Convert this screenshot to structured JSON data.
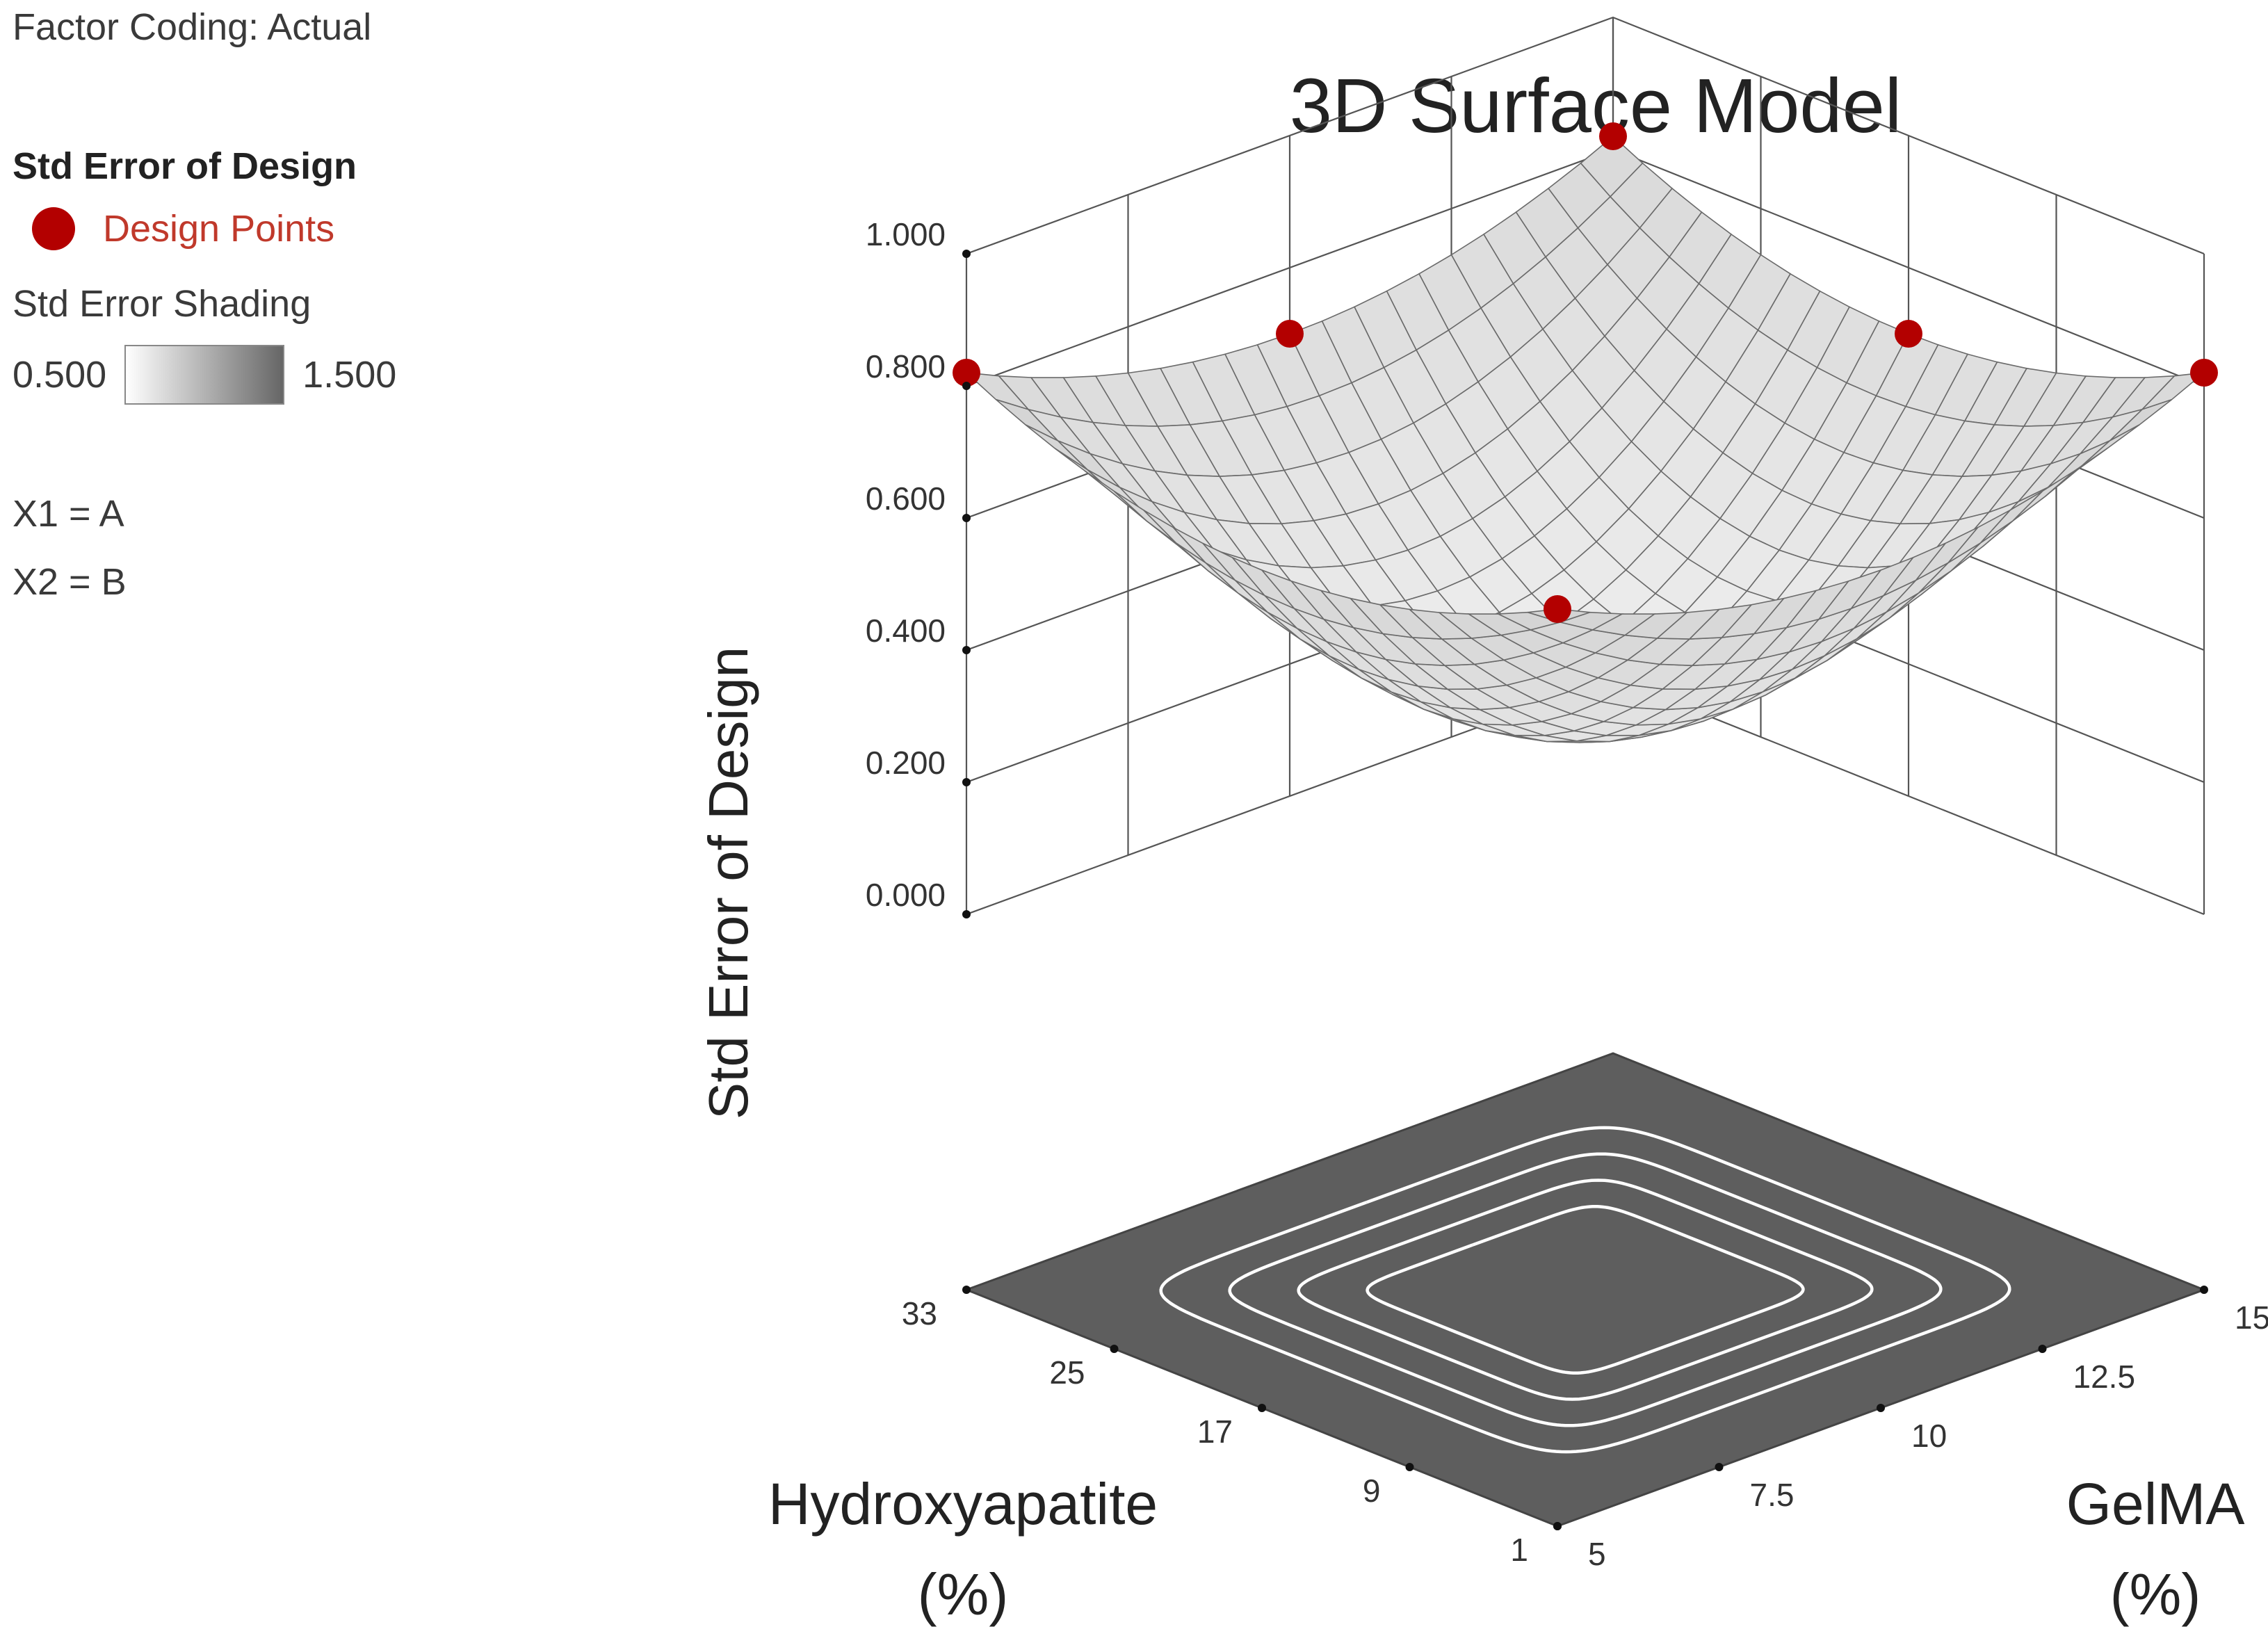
{
  "legend": {
    "factor_coding": "Factor Coding: Actual",
    "response_title": "Std Error of Design",
    "design_points_label": "Design Points",
    "shading_title": "Std Error Shading",
    "shading_min": "0.500",
    "shading_max": "1.500",
    "x1": "X1 = A",
    "x2": "X2 = B"
  },
  "chart_data": {
    "type": "surface",
    "title": "3D Surface Model",
    "zlabel": "Std Error of Design",
    "xlabel_line1": "Hydroxyapatite",
    "xlabel_line2": "(%)",
    "ylabel_line1": "GelMA",
    "ylabel_line2": "(%)",
    "x_ticks": [
      "1",
      "9",
      "17",
      "25",
      "33"
    ],
    "x_range": [
      1,
      33
    ],
    "y_ticks": [
      "5",
      "7.5",
      "10",
      "12.5",
      "15"
    ],
    "y_range": [
      5,
      15
    ],
    "z_ticks": [
      "0.000",
      "0.200",
      "0.400",
      "0.600",
      "0.800",
      "1.000"
    ],
    "z_range": [
      0,
      1
    ],
    "grid": true,
    "design_points": [
      {
        "x": 33,
        "y": 5,
        "z": 0.82
      },
      {
        "x": 1,
        "y": 15,
        "z": 0.82
      },
      {
        "x": 33,
        "y": 15,
        "z": 0.92
      },
      {
        "x": 1,
        "y": 5,
        "z": 0.82
      },
      {
        "x": 33,
        "y": 10,
        "z": 0.7
      },
      {
        "x": 17,
        "y": 15,
        "z": 0.7
      },
      {
        "x": 1,
        "y": 10,
        "z": 0.4
      },
      {
        "x": 17,
        "y": 5,
        "z": 0.4
      },
      {
        "x": 17,
        "y": 10,
        "z": 0.3
      }
    ],
    "surface_model": {
      "z_center": 0.3,
      "z_edge_mid": 0.7,
      "z_corner": 0.82,
      "grid_steps": 20
    },
    "colors": {
      "point": "#b30000",
      "floor": "#5e5e5e",
      "contour": "#ffffff",
      "surface_line": "#6a6a6a"
    }
  }
}
